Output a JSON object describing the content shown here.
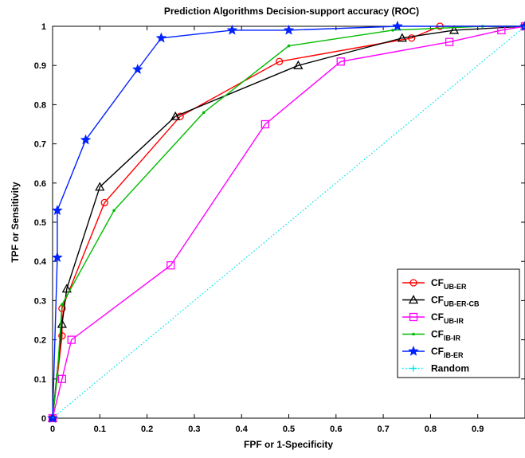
{
  "chart_data": {
    "type": "line",
    "title": "Prediction Algorithms Decision-support accuracy (ROC)",
    "xlabel": "FPF or 1-Specificity",
    "ylabel": "TPF or Sensitivity",
    "xlim": [
      0,
      1
    ],
    "ylim": [
      0,
      1
    ],
    "xticks": [
      "0",
      "0.1",
      "0.2",
      "0.3",
      "0.4",
      "0.5",
      "0.6",
      "0.7",
      "0.8",
      "0.9"
    ],
    "yticks": [
      "0",
      "0.1",
      "0.2",
      "0.3",
      "0.4",
      "0.5",
      "0.6",
      "0.7",
      "0.8",
      "0.9",
      "1"
    ],
    "grid": false,
    "legend_position": "bottom-right",
    "series": [
      {
        "name": "CF_UB-ER",
        "label_main": "CF",
        "label_sub": "UB-ER",
        "color": "#ff0000",
        "marker": "circle",
        "line": "solid",
        "x": [
          0,
          0.02,
          0.02,
          0.11,
          0.27,
          0.48,
          0.76,
          0.82,
          1.0
        ],
        "y": [
          0,
          0.21,
          0.28,
          0.55,
          0.77,
          0.91,
          0.97,
          1.0,
          1.0
        ]
      },
      {
        "name": "CF_UB-ER-CB",
        "label_main": "CF",
        "label_sub": "UB-ER-CB",
        "color": "#000000",
        "marker": "triangle",
        "line": "solid",
        "x": [
          0,
          0.02,
          0.03,
          0.1,
          0.26,
          0.52,
          0.74,
          0.85,
          1.0
        ],
        "y": [
          0,
          0.24,
          0.33,
          0.59,
          0.77,
          0.9,
          0.97,
          0.99,
          1.0
        ]
      },
      {
        "name": "CF_UB-IR",
        "label_main": "CF",
        "label_sub": "UB-IR",
        "color": "#ff00ff",
        "marker": "square",
        "line": "solid",
        "x": [
          0,
          0.02,
          0.04,
          0.25,
          0.45,
          0.61,
          0.84,
          0.95,
          1.0
        ],
        "y": [
          0,
          0.1,
          0.2,
          0.39,
          0.75,
          0.91,
          0.96,
          0.99,
          1.0
        ]
      },
      {
        "name": "CF_IB-IR",
        "label_main": "CF",
        "label_sub": "IB-IR",
        "color": "#00bb00",
        "marker": "dot",
        "line": "solid",
        "x": [
          0,
          0.01,
          0.02,
          0.13,
          0.32,
          0.5,
          0.72,
          0.91,
          1.0
        ],
        "y": [
          0,
          0.11,
          0.29,
          0.53,
          0.78,
          0.95,
          0.99,
          1.0,
          1.0
        ]
      },
      {
        "name": "CF_IB-ER",
        "label_main": "CF",
        "label_sub": "IB-ER",
        "color": "#0022ff",
        "marker": "star",
        "line": "solid",
        "x": [
          0,
          0.01,
          0.01,
          0.07,
          0.18,
          0.23,
          0.38,
          0.5,
          0.73,
          1.0
        ],
        "y": [
          0,
          0.41,
          0.53,
          0.71,
          0.89,
          0.97,
          0.99,
          0.99,
          1.0,
          1.0
        ]
      },
      {
        "name": "Random",
        "label_main": "Random",
        "label_sub": "",
        "color": "#00e5ee",
        "marker": "none",
        "line": "dotted",
        "x": [
          0,
          1.0
        ],
        "y": [
          0,
          1.0
        ]
      }
    ]
  }
}
